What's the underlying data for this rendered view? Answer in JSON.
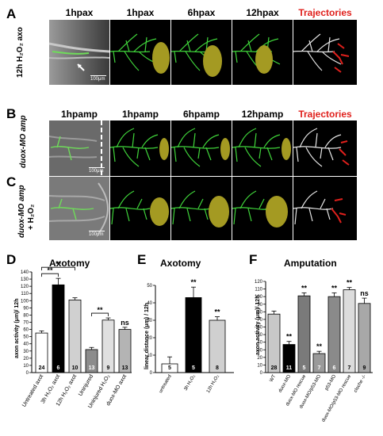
{
  "panels": {
    "A": {
      "letter": "A",
      "row_label": "12h H₂O₂ axo",
      "headers": [
        "1hpax",
        "1hpax",
        "6hpax",
        "12hpax",
        "Trajectories"
      ],
      "scale_bar": "100μm"
    },
    "B": {
      "letter": "B",
      "row_label": "duox-MO amp",
      "headers": [
        "1hpamp",
        "1hpamp",
        "6hpamp",
        "12hpamp",
        "Trajectories"
      ],
      "scale_bar": "100μm"
    },
    "C": {
      "letter": "C",
      "row_label_1": "duox-MO amp",
      "row_label_2": "+ H₂O₂",
      "scale_bar": "100μm"
    }
  },
  "chart_data": [
    {
      "id": "D",
      "type": "bar",
      "panel_letter": "D",
      "title": "Axotomy",
      "ylabel": "axon activity (μm)/ 12h",
      "ylim": [
        0,
        140
      ],
      "yticks": [
        0,
        10,
        20,
        30,
        40,
        50,
        60,
        70,
        80,
        90,
        100,
        110,
        120,
        130,
        140
      ],
      "categories": [
        "Untreated axot",
        "3h H₂O₂ axot",
        "12h H₂O₂ axot",
        "Uninjured",
        "Uninjured H₂O₂",
        "duox-MO axot"
      ],
      "values": [
        55,
        122,
        101,
        32,
        73,
        60
      ],
      "errors": [
        3,
        9,
        3,
        3,
        3,
        3
      ],
      "n": [
        "24",
        "6",
        "10",
        "13",
        "9",
        "13"
      ],
      "fills": [
        "#ffffff",
        "#000000",
        "#d0d0d0",
        "#8c8c8c",
        "#e0e0e0",
        "#b4b4b4"
      ],
      "significance": [
        {
          "label": "**",
          "between": [
            0,
            1
          ]
        },
        {
          "label": "**",
          "between": [
            0,
            2
          ]
        },
        {
          "label": "**",
          "between": [
            3,
            4
          ]
        },
        {
          "label": "ns",
          "bar": 5
        }
      ]
    },
    {
      "id": "E",
      "type": "bar",
      "panel_letter": "E",
      "title": "Axotomy",
      "ylabel": "linear distance (μm) / 12h",
      "ylim": [
        0,
        50
      ],
      "yticks": [
        0,
        10,
        20,
        30,
        40,
        50
      ],
      "categories": [
        "untreated",
        "3h H₂O₂",
        "12h H₂O₂"
      ],
      "values": [
        5,
        43,
        30
      ],
      "errors": [
        4,
        6,
        2
      ],
      "n": [
        "5",
        "5",
        "8"
      ],
      "fills": [
        "#ffffff",
        "#000000",
        "#d0d0d0"
      ],
      "significance": [
        {
          "label": "**",
          "bar": 1
        },
        {
          "label": "**",
          "bar": 2
        }
      ]
    },
    {
      "id": "F",
      "type": "bar",
      "panel_letter": "F",
      "title": "Amputation",
      "ylabel": "axon activity (μm)/ 12h",
      "ylim": [
        0,
        120
      ],
      "yticks": [
        0,
        10,
        20,
        30,
        40,
        50,
        60,
        70,
        80,
        90,
        100,
        110,
        120
      ],
      "categories": [
        "WT",
        "duox-MO",
        "duox-MO rescue",
        "duox-MO/p53-MO",
        "p53-MO",
        "duox-MO/p53-MO rescue",
        "cloche -/-"
      ],
      "values": [
        77,
        37,
        101,
        25,
        100,
        109,
        91
      ],
      "errors": [
        4,
        4,
        4,
        3,
        5,
        3,
        7
      ],
      "n": [
        "28",
        "11",
        "5",
        "7",
        "6",
        "7",
        "9"
      ],
      "fills": [
        "#c8c8c8",
        "#000000",
        "#7a7a7a",
        "#9a9a9a",
        "#8a8a8a",
        "#dcdcdc",
        "#a8a8a8"
      ],
      "significance": [
        {
          "label": "**",
          "bar": 1
        },
        {
          "label": "**",
          "bar": 2
        },
        {
          "label": "**",
          "bar": 3
        },
        {
          "label": "**",
          "bar": 4
        },
        {
          "label": "**",
          "bar": 5
        },
        {
          "label": "ns",
          "bar": 6
        }
      ]
    }
  ]
}
